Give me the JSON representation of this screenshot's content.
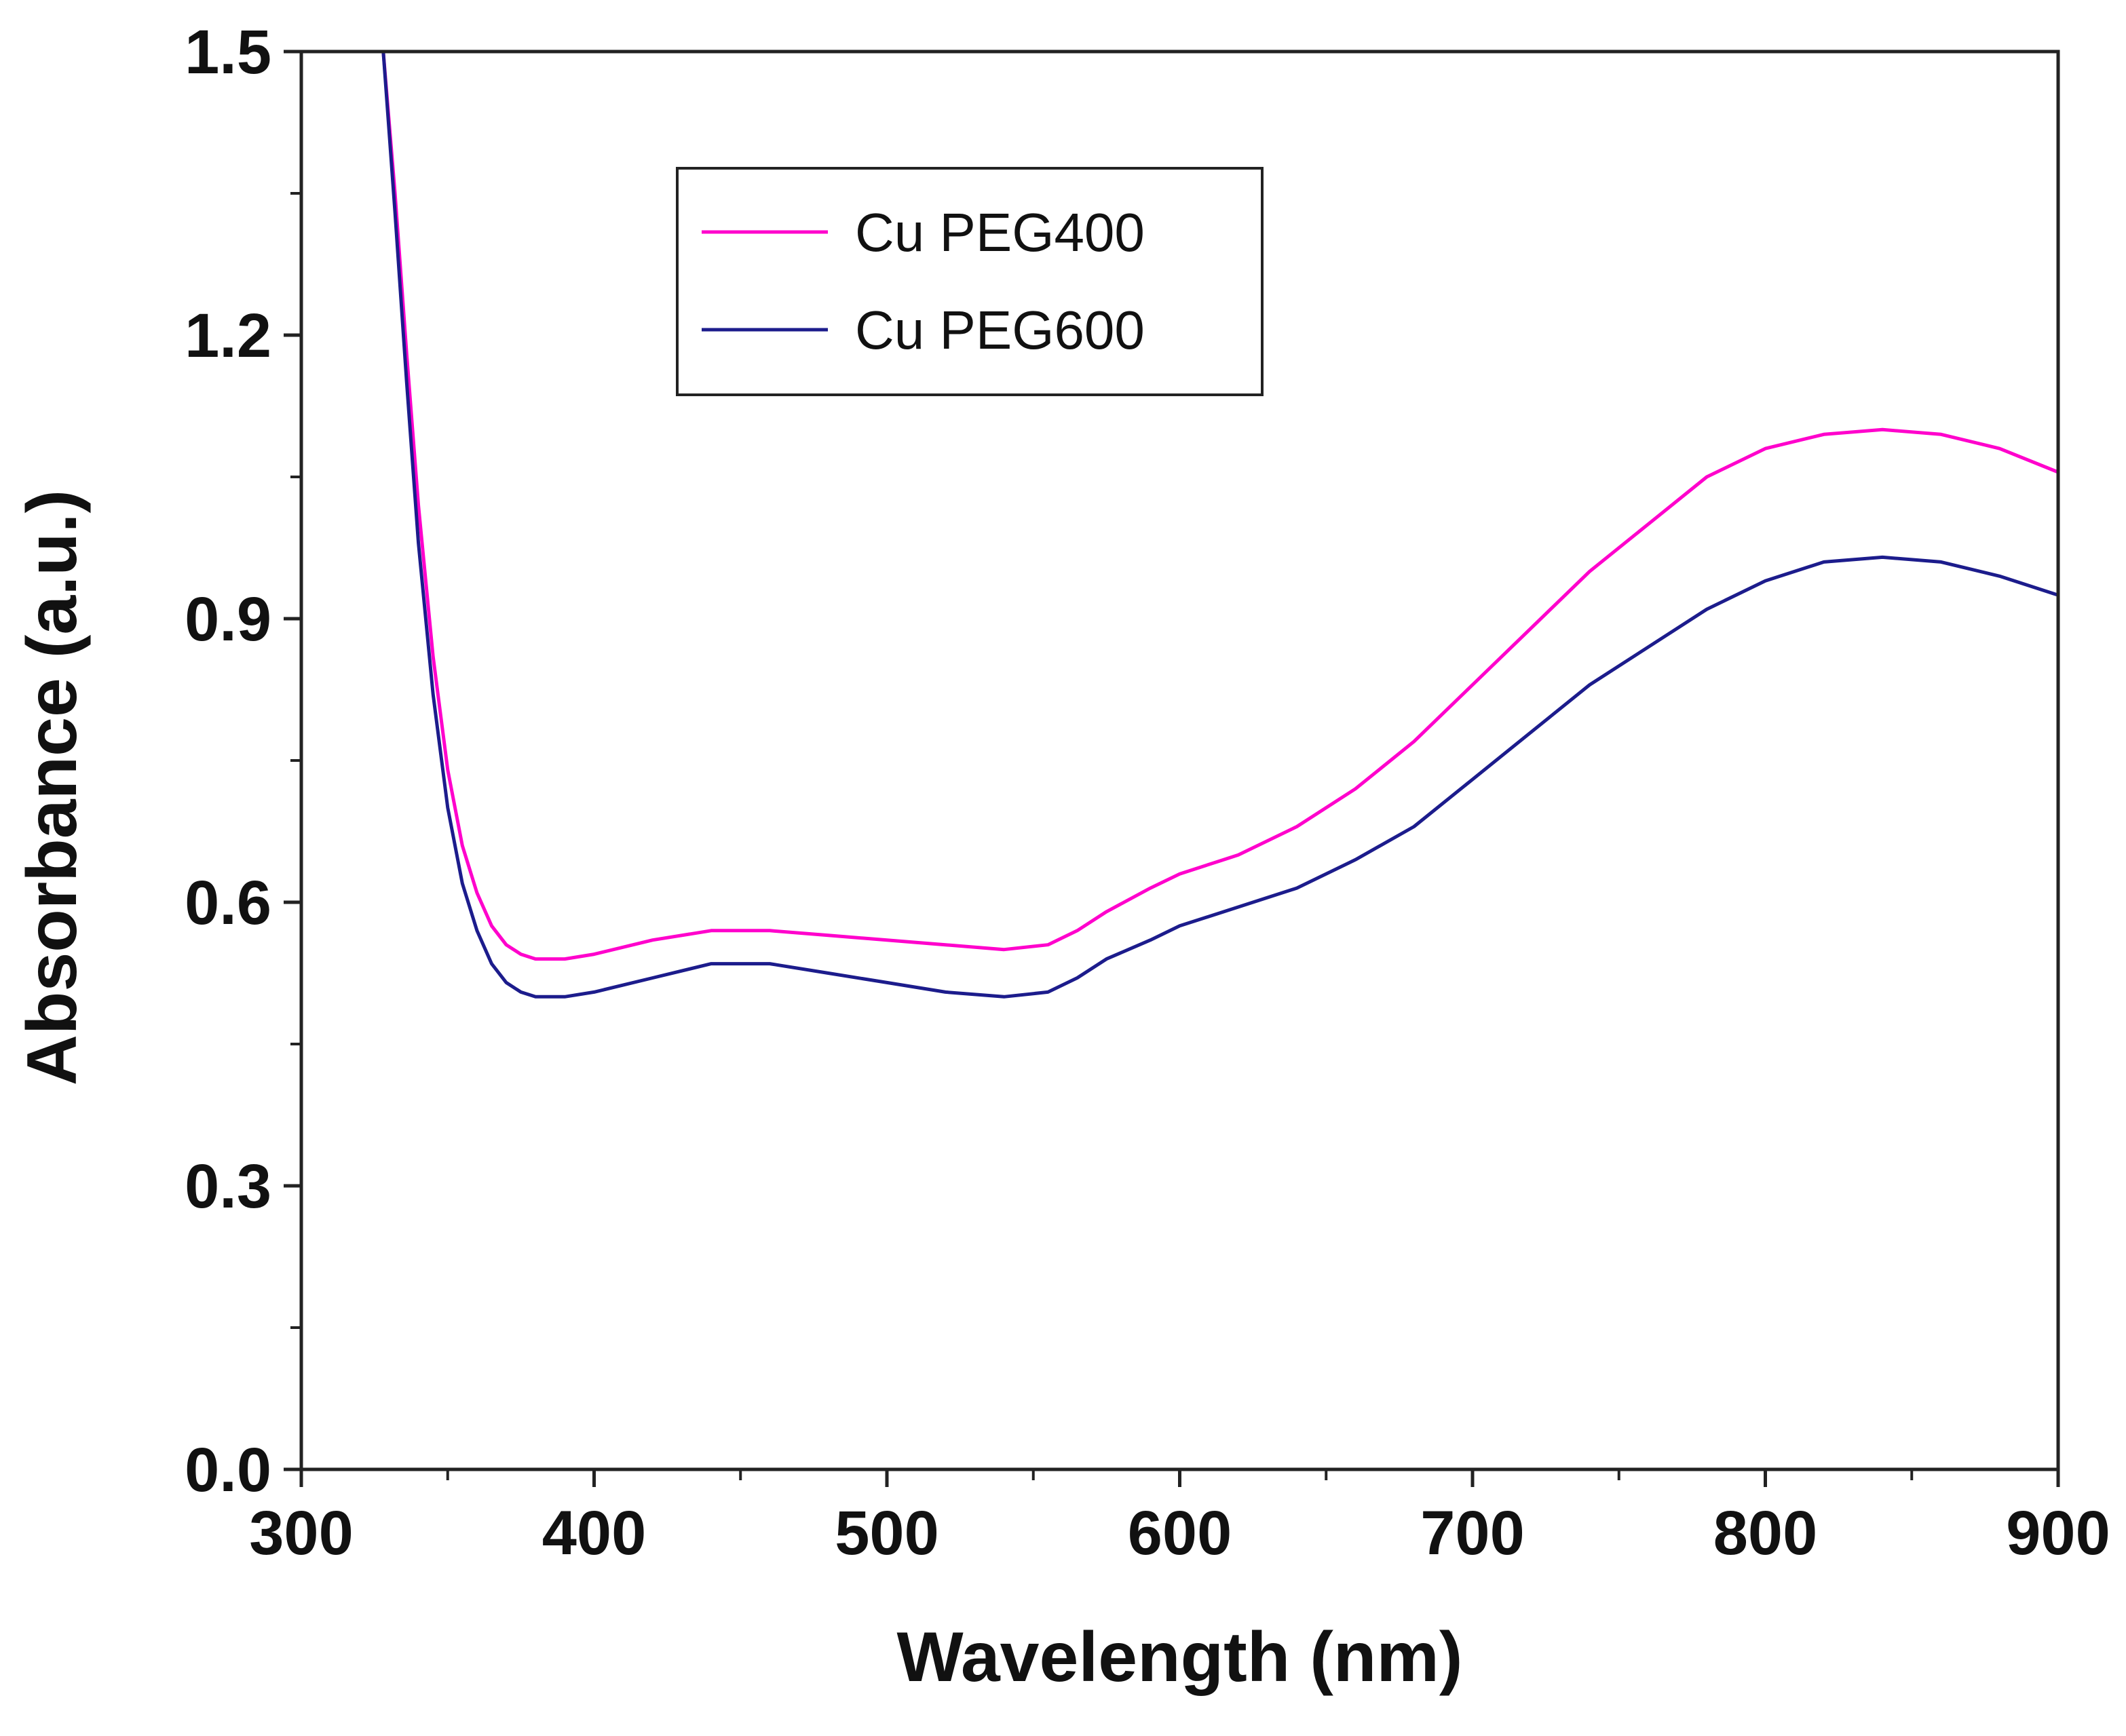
{
  "chart_data": {
    "type": "line",
    "title": "",
    "xlabel": "Wavelength (nm)",
    "ylabel": "Absorbance (a.u.)",
    "xlim": [
      300,
      900
    ],
    "ylim": [
      0.0,
      1.5
    ],
    "x_ticks": [
      300,
      400,
      500,
      600,
      700,
      800,
      900
    ],
    "x_tick_labels": [
      "300",
      "400",
      "500",
      "600",
      "700",
      "800",
      "900"
    ],
    "y_ticks": [
      0.0,
      0.3,
      0.6,
      0.9,
      1.2,
      1.5
    ],
    "y_tick_labels": [
      "0.0",
      "0.3",
      "0.6",
      "0.9",
      "1.2",
      "1.5"
    ],
    "grid": false,
    "legend_position": "top-left-center",
    "series": [
      {
        "name": "Cu PEG400",
        "color": "#ff00cc",
        "x": [
          328,
          332,
          336,
          340,
          345,
          350,
          355,
          360,
          365,
          370,
          375,
          380,
          390,
          400,
          420,
          440,
          460,
          480,
          500,
          520,
          540,
          555,
          565,
          575,
          590,
          600,
          620,
          640,
          660,
          680,
          700,
          720,
          740,
          760,
          780,
          800,
          820,
          840,
          860,
          880,
          900
        ],
        "y": [
          1.5,
          1.35,
          1.18,
          1.02,
          0.86,
          0.74,
          0.66,
          0.61,
          0.575,
          0.555,
          0.545,
          0.54,
          0.54,
          0.545,
          0.56,
          0.57,
          0.57,
          0.565,
          0.56,
          0.555,
          0.55,
          0.555,
          0.57,
          0.59,
          0.615,
          0.63,
          0.65,
          0.68,
          0.72,
          0.77,
          0.83,
          0.89,
          0.95,
          1.0,
          1.05,
          1.08,
          1.095,
          1.1,
          1.095,
          1.08,
          1.055
        ]
      },
      {
        "name": "Cu PEG600",
        "color": "#1c1c8c",
        "x": [
          328,
          332,
          336,
          340,
          345,
          350,
          355,
          360,
          365,
          370,
          375,
          380,
          390,
          400,
          420,
          440,
          460,
          480,
          500,
          520,
          540,
          555,
          565,
          575,
          590,
          600,
          620,
          640,
          660,
          680,
          700,
          720,
          740,
          760,
          780,
          800,
          820,
          840,
          860,
          880,
          900
        ],
        "y": [
          1.5,
          1.33,
          1.15,
          0.98,
          0.82,
          0.7,
          0.62,
          0.57,
          0.535,
          0.515,
          0.505,
          0.5,
          0.5,
          0.505,
          0.52,
          0.535,
          0.535,
          0.525,
          0.515,
          0.505,
          0.5,
          0.505,
          0.52,
          0.54,
          0.56,
          0.575,
          0.595,
          0.615,
          0.645,
          0.68,
          0.73,
          0.78,
          0.83,
          0.87,
          0.91,
          0.94,
          0.96,
          0.965,
          0.96,
          0.945,
          0.925
        ]
      }
    ]
  }
}
